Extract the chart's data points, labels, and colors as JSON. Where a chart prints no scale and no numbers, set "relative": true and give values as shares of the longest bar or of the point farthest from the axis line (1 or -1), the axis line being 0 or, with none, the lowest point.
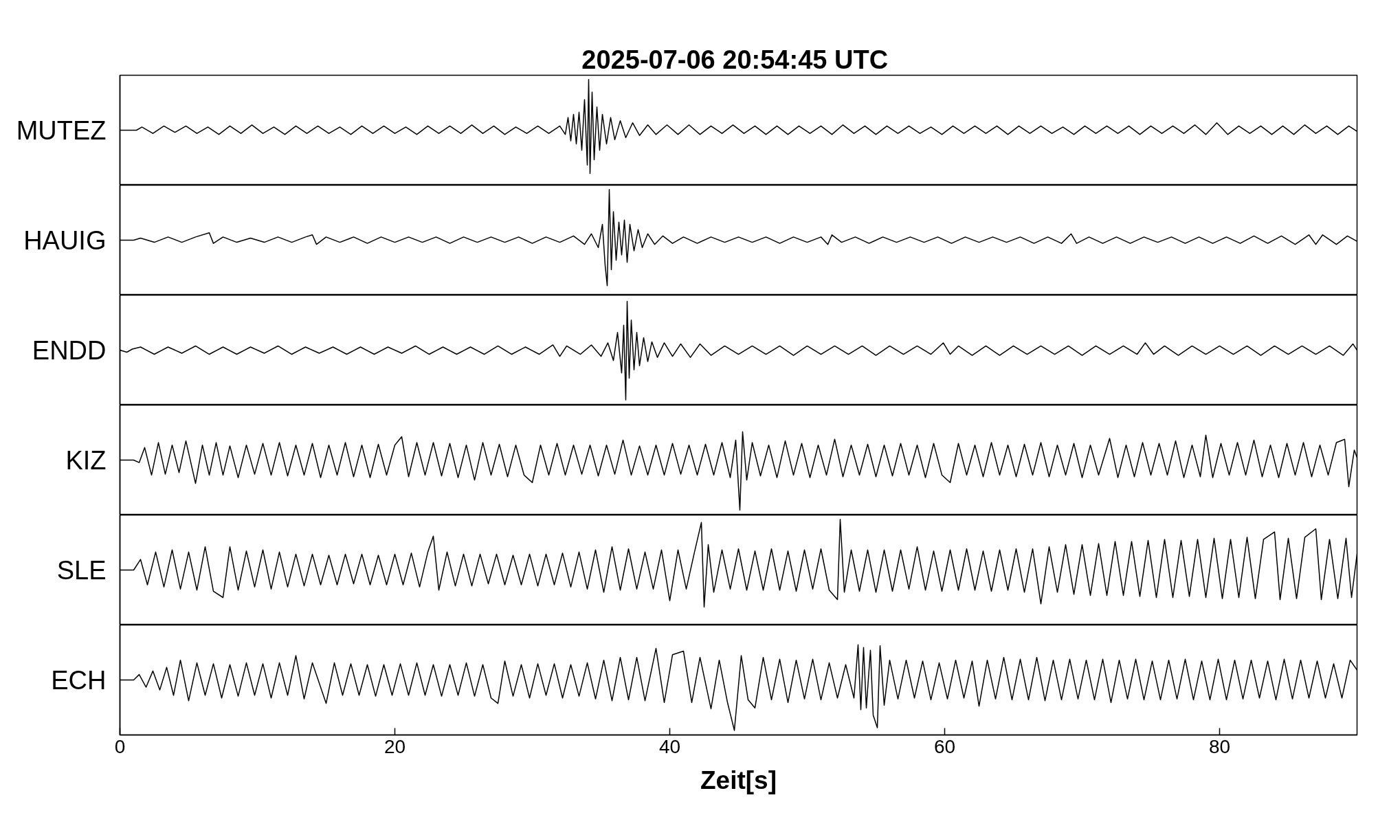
{
  "chart_data": [
    {
      "type": "line",
      "title": "2025-07-06  20:54:45 UTC",
      "ylabel": "MUTEZ",
      "relative": true,
      "color": "#000000",
      "xlim": [
        0,
        90
      ],
      "xticks": [
        0,
        20,
        40,
        60,
        80
      ],
      "tick_labels": false,
      "x": [
        0,
        1.2,
        1.6,
        2.4,
        3.2,
        4.0,
        4.8,
        5.6,
        6.4,
        7.2,
        8.0,
        8.8,
        9.6,
        10.4,
        11.2,
        12.0,
        12.8,
        13.6,
        14.4,
        15.2,
        16.0,
        16.8,
        17.6,
        18.4,
        19.2,
        20.0,
        20.8,
        21.6,
        22.4,
        23.2,
        24.0,
        24.8,
        25.6,
        26.4,
        27.2,
        28.0,
        28.8,
        29.6,
        30.4,
        31.2,
        32.0,
        32.4,
        32.6,
        32.8,
        33.0,
        33.2,
        33.4,
        33.6,
        33.8,
        34.0,
        34.1,
        34.2,
        34.35,
        34.5,
        34.7,
        34.9,
        35.1,
        35.4,
        35.7,
        36.0,
        36.4,
        36.8,
        37.3,
        37.8,
        38.4,
        39.0,
        39.8,
        40.6,
        41.4,
        42.2,
        43.0,
        43.8,
        44.6,
        45.4,
        46.2,
        47.0,
        47.8,
        48.6,
        49.4,
        50.2,
        51.0,
        51.8,
        52.6,
        53.4,
        54.2,
        55.0,
        55.8,
        56.6,
        57.4,
        58.2,
        59.0,
        59.8,
        60.6,
        61.4,
        62.2,
        63.0,
        63.8,
        64.6,
        65.4,
        66.2,
        67.0,
        67.8,
        68.6,
        69.4,
        70.2,
        71.0,
        71.8,
        72.6,
        73.4,
        74.2,
        75.0,
        75.8,
        76.6,
        77.4,
        78.2,
        79.0,
        79.8,
        80.6,
        81.4,
        82.2,
        83.0,
        83.8,
        84.6,
        85.4,
        86.2,
        87.0,
        87.8,
        88.6,
        89.4,
        90.0
      ],
      "values": [
        0.52,
        0.52,
        0.55,
        0.49,
        0.56,
        0.5,
        0.56,
        0.49,
        0.55,
        0.48,
        0.56,
        0.49,
        0.57,
        0.49,
        0.55,
        0.48,
        0.56,
        0.49,
        0.56,
        0.49,
        0.55,
        0.48,
        0.56,
        0.49,
        0.56,
        0.49,
        0.55,
        0.48,
        0.56,
        0.49,
        0.56,
        0.49,
        0.57,
        0.49,
        0.56,
        0.48,
        0.55,
        0.49,
        0.56,
        0.49,
        0.56,
        0.48,
        0.64,
        0.42,
        0.67,
        0.39,
        0.69,
        0.33,
        0.81,
        0.19,
        1.0,
        0.11,
        0.88,
        0.24,
        0.74,
        0.33,
        0.67,
        0.39,
        0.64,
        0.43,
        0.61,
        0.45,
        0.59,
        0.47,
        0.57,
        0.48,
        0.57,
        0.48,
        0.57,
        0.48,
        0.56,
        0.49,
        0.57,
        0.49,
        0.56,
        0.48,
        0.56,
        0.48,
        0.56,
        0.49,
        0.56,
        0.48,
        0.57,
        0.49,
        0.56,
        0.48,
        0.56,
        0.49,
        0.56,
        0.49,
        0.55,
        0.48,
        0.56,
        0.49,
        0.56,
        0.49,
        0.56,
        0.48,
        0.56,
        0.49,
        0.56,
        0.49,
        0.55,
        0.48,
        0.56,
        0.49,
        0.56,
        0.49,
        0.56,
        0.48,
        0.56,
        0.49,
        0.56,
        0.49,
        0.57,
        0.48,
        0.59,
        0.48,
        0.56,
        0.49,
        0.56,
        0.48,
        0.56,
        0.48,
        0.57,
        0.49,
        0.56,
        0.48,
        0.56,
        0.51
      ]
    },
    {
      "type": "line",
      "ylabel": "HAUIG",
      "relative": true,
      "color": "#000000",
      "xlim": [
        0,
        90
      ],
      "xticks": [
        0,
        20,
        40,
        60,
        80
      ],
      "tick_labels": false,
      "x": [
        0,
        1.0,
        1.5,
        2.5,
        3.5,
        4.5,
        5.5,
        6.5,
        6.8,
        7.5,
        8.5,
        9.5,
        10.5,
        11.5,
        12.5,
        13.5,
        14.0,
        14.3,
        15.0,
        16.0,
        17.0,
        18.0,
        19.0,
        20.0,
        21.0,
        22.0,
        23.0,
        24.0,
        25.0,
        26.0,
        27.0,
        28.0,
        29.0,
        30.0,
        31.0,
        32.0,
        33.0,
        33.8,
        34.3,
        34.8,
        35.1,
        35.3,
        35.45,
        35.6,
        35.75,
        35.9,
        36.1,
        36.3,
        36.5,
        36.7,
        36.9,
        37.1,
        37.4,
        37.7,
        38.0,
        38.4,
        38.9,
        39.5,
        40.2,
        41.0,
        42.0,
        43.0,
        44.0,
        45.0,
        46.0,
        47.0,
        48.0,
        49.0,
        50.0,
        51.0,
        51.5,
        51.8,
        52.5,
        53.5,
        54.5,
        55.5,
        56.5,
        57.5,
        58.5,
        59.5,
        60.5,
        61.5,
        62.5,
        63.5,
        64.5,
        65.5,
        66.5,
        67.5,
        68.5,
        69.2,
        69.6,
        70.5,
        71.5,
        72.5,
        73.5,
        74.5,
        75.5,
        76.5,
        77.5,
        78.5,
        79.5,
        80.5,
        81.5,
        82.5,
        83.5,
        84.5,
        85.5,
        86.5,
        87.0,
        87.5,
        88.5,
        89.3,
        90.0
      ],
      "values": [
        0.52,
        0.52,
        0.54,
        0.5,
        0.55,
        0.5,
        0.55,
        0.59,
        0.49,
        0.55,
        0.5,
        0.54,
        0.5,
        0.55,
        0.5,
        0.55,
        0.57,
        0.48,
        0.55,
        0.5,
        0.55,
        0.49,
        0.55,
        0.5,
        0.55,
        0.5,
        0.55,
        0.49,
        0.55,
        0.5,
        0.55,
        0.5,
        0.55,
        0.49,
        0.55,
        0.5,
        0.56,
        0.48,
        0.58,
        0.45,
        0.67,
        0.28,
        0.09,
        1.0,
        0.24,
        0.79,
        0.33,
        0.69,
        0.38,
        0.71,
        0.31,
        0.67,
        0.42,
        0.62,
        0.45,
        0.58,
        0.48,
        0.56,
        0.49,
        0.55,
        0.49,
        0.55,
        0.5,
        0.55,
        0.5,
        0.55,
        0.49,
        0.55,
        0.5,
        0.55,
        0.48,
        0.57,
        0.5,
        0.55,
        0.49,
        0.55,
        0.5,
        0.55,
        0.5,
        0.55,
        0.49,
        0.55,
        0.5,
        0.55,
        0.5,
        0.55,
        0.49,
        0.55,
        0.49,
        0.58,
        0.49,
        0.55,
        0.49,
        0.55,
        0.49,
        0.55,
        0.5,
        0.55,
        0.49,
        0.55,
        0.49,
        0.55,
        0.49,
        0.56,
        0.49,
        0.56,
        0.48,
        0.57,
        0.48,
        0.57,
        0.48,
        0.56,
        0.51
      ]
    },
    {
      "type": "line",
      "ylabel": "ENDD",
      "relative": true,
      "color": "#000000",
      "xlim": [
        0,
        90
      ],
      "xticks": [
        0,
        20,
        40,
        60,
        80
      ],
      "tick_labels": false,
      "x": [
        0,
        0.5,
        0.9,
        1.5,
        2.5,
        3.5,
        4.5,
        5.5,
        6.5,
        7.5,
        8.5,
        9.5,
        10.5,
        11.5,
        12.5,
        13.5,
        14.5,
        15.5,
        16.5,
        17.5,
        18.5,
        19.5,
        20.5,
        21.5,
        22.5,
        23.5,
        24.5,
        25.5,
        26.5,
        27.5,
        28.5,
        29.5,
        30.5,
        31.5,
        32.0,
        32.5,
        33.5,
        34.3,
        35.0,
        35.5,
        35.9,
        36.2,
        36.5,
        36.65,
        36.8,
        36.9,
        37.05,
        37.2,
        37.4,
        37.6,
        37.8,
        38.1,
        38.4,
        38.7,
        39.1,
        39.6,
        40.2,
        40.8,
        41.5,
        42.2,
        43.0,
        44.0,
        45.0,
        46.0,
        47.0,
        48.0,
        49.0,
        50.0,
        51.0,
        52.0,
        53.0,
        54.0,
        55.0,
        56.0,
        57.0,
        58.0,
        59.0,
        59.9,
        60.4,
        61.0,
        62.0,
        63.0,
        64.0,
        65.0,
        66.0,
        67.0,
        68.0,
        69.0,
        70.0,
        71.0,
        72.0,
        73.0,
        74.0,
        74.6,
        75.2,
        76.0,
        77.0,
        78.0,
        79.0,
        80.0,
        81.0,
        82.0,
        83.0,
        84.0,
        85.0,
        86.0,
        87.0,
        88.0,
        89.0,
        89.7,
        90.0
      ],
      "values": [
        0.53,
        0.51,
        0.54,
        0.56,
        0.49,
        0.56,
        0.5,
        0.57,
        0.49,
        0.56,
        0.49,
        0.56,
        0.5,
        0.57,
        0.49,
        0.56,
        0.5,
        0.56,
        0.49,
        0.56,
        0.49,
        0.56,
        0.5,
        0.57,
        0.49,
        0.56,
        0.49,
        0.56,
        0.49,
        0.57,
        0.49,
        0.56,
        0.49,
        0.58,
        0.47,
        0.57,
        0.49,
        0.58,
        0.47,
        0.6,
        0.43,
        0.7,
        0.31,
        0.77,
        0.05,
        1.0,
        0.26,
        0.82,
        0.34,
        0.7,
        0.38,
        0.65,
        0.42,
        0.61,
        0.46,
        0.6,
        0.47,
        0.59,
        0.46,
        0.59,
        0.48,
        0.57,
        0.49,
        0.57,
        0.49,
        0.57,
        0.48,
        0.57,
        0.49,
        0.57,
        0.49,
        0.57,
        0.48,
        0.57,
        0.49,
        0.57,
        0.49,
        0.6,
        0.49,
        0.57,
        0.48,
        0.57,
        0.48,
        0.57,
        0.49,
        0.57,
        0.49,
        0.57,
        0.48,
        0.57,
        0.49,
        0.57,
        0.49,
        0.6,
        0.49,
        0.57,
        0.48,
        0.57,
        0.49,
        0.57,
        0.49,
        0.57,
        0.48,
        0.57,
        0.49,
        0.57,
        0.49,
        0.57,
        0.48,
        0.59,
        0.53
      ]
    },
    {
      "type": "line",
      "ylabel": "KIZ",
      "relative": true,
      "color": "#000000",
      "xlim": [
        0,
        90
      ],
      "xticks": [
        0,
        20,
        40,
        60,
        80
      ],
      "tick_labels": false,
      "x": [
        0,
        1.0,
        1.4,
        1.8,
        2.3,
        2.8,
        3.3,
        3.8,
        4.3,
        4.8,
        5.5,
        6.0,
        6.5,
        7.0,
        7.5,
        8.0,
        8.6,
        9.2,
        9.8,
        10.4,
        11.0,
        11.6,
        12.2,
        12.8,
        13.4,
        14.0,
        14.6,
        15.2,
        15.8,
        16.4,
        17.0,
        17.6,
        18.2,
        18.8,
        19.4,
        20.0,
        20.5,
        21.0,
        21.6,
        22.2,
        22.8,
        23.4,
        24.0,
        24.6,
        25.2,
        25.8,
        26.4,
        27.0,
        27.6,
        28.2,
        28.8,
        29.4,
        30.0,
        30.6,
        31.2,
        31.8,
        32.4,
        33.0,
        33.6,
        34.2,
        34.8,
        35.4,
        36.0,
        36.6,
        37.2,
        37.8,
        38.4,
        39.0,
        39.6,
        40.2,
        40.8,
        41.4,
        42.0,
        42.6,
        43.2,
        43.8,
        44.4,
        44.8,
        45.1,
        45.3,
        45.6,
        46.0,
        46.6,
        47.2,
        47.8,
        48.4,
        49.0,
        49.6,
        50.2,
        50.8,
        51.4,
        52.0,
        52.6,
        53.2,
        53.8,
        54.4,
        55.0,
        55.6,
        56.2,
        56.8,
        57.4,
        58.0,
        58.6,
        59.2,
        59.8,
        60.4,
        61.0,
        61.6,
        62.2,
        62.8,
        63.4,
        64.0,
        64.6,
        65.2,
        65.8,
        66.4,
        67.0,
        67.6,
        68.2,
        68.8,
        69.4,
        70.0,
        70.6,
        71.2,
        72.0,
        72.6,
        73.2,
        73.8,
        74.4,
        75.0,
        75.6,
        76.2,
        76.8,
        77.4,
        78.0,
        78.6,
        79.0,
        79.5,
        80.1,
        80.7,
        81.3,
        81.9,
        82.5,
        83.1,
        83.7,
        84.3,
        84.9,
        85.5,
        86.1,
        86.7,
        87.3,
        87.9,
        88.5,
        89.1,
        89.4,
        89.8,
        90.0
      ],
      "values": [
        0.66,
        0.66,
        0.63,
        0.81,
        0.48,
        0.87,
        0.49,
        0.84,
        0.51,
        0.89,
        0.38,
        0.84,
        0.48,
        0.87,
        0.48,
        0.83,
        0.45,
        0.84,
        0.49,
        0.86,
        0.48,
        0.87,
        0.47,
        0.84,
        0.48,
        0.86,
        0.45,
        0.84,
        0.48,
        0.87,
        0.46,
        0.84,
        0.45,
        0.85,
        0.48,
        0.84,
        0.94,
        0.46,
        0.87,
        0.48,
        0.87,
        0.47,
        0.86,
        0.45,
        0.84,
        0.42,
        0.87,
        0.48,
        0.85,
        0.46,
        0.84,
        0.48,
        0.39,
        0.84,
        0.48,
        0.86,
        0.48,
        0.84,
        0.49,
        0.84,
        0.47,
        0.84,
        0.49,
        0.9,
        0.48,
        0.83,
        0.48,
        0.84,
        0.48,
        0.86,
        0.49,
        0.84,
        0.48,
        0.85,
        0.48,
        0.87,
        0.45,
        0.9,
        0.06,
        1.0,
        0.42,
        0.87,
        0.47,
        0.84,
        0.45,
        0.89,
        0.48,
        0.86,
        0.45,
        0.84,
        0.48,
        0.91,
        0.46,
        0.84,
        0.48,
        0.85,
        0.46,
        0.84,
        0.47,
        0.86,
        0.48,
        0.84,
        0.45,
        0.86,
        0.48,
        0.39,
        0.86,
        0.48,
        0.84,
        0.46,
        0.87,
        0.48,
        0.84,
        0.46,
        0.85,
        0.48,
        0.87,
        0.46,
        0.84,
        0.48,
        0.86,
        0.45,
        0.84,
        0.48,
        0.92,
        0.45,
        0.84,
        0.46,
        0.87,
        0.48,
        0.86,
        0.48,
        0.89,
        0.45,
        0.84,
        0.46,
        0.96,
        0.45,
        0.86,
        0.48,
        0.87,
        0.48,
        0.9,
        0.46,
        0.84,
        0.45,
        0.86,
        0.48,
        0.87,
        0.46,
        0.84,
        0.48,
        0.87,
        0.91,
        0.34,
        0.78,
        0.69
      ]
    },
    {
      "type": "line",
      "ylabel": "SLE",
      "relative": true,
      "color": "#000000",
      "xlim": [
        0,
        90
      ],
      "xticks": [
        0,
        20,
        40,
        60,
        80
      ],
      "tick_labels": false,
      "x": [
        0,
        1.0,
        1.5,
        2.0,
        2.6,
        3.2,
        3.8,
        4.4,
        5.0,
        5.6,
        6.2,
        6.8,
        7.5,
        8.0,
        8.6,
        9.2,
        9.8,
        10.4,
        11.0,
        11.6,
        12.2,
        12.8,
        13.4,
        14.0,
        14.6,
        15.2,
        15.8,
        16.4,
        17.0,
        17.6,
        18.2,
        18.8,
        19.4,
        20.0,
        20.6,
        21.2,
        21.8,
        22.4,
        22.8,
        23.2,
        23.8,
        24.4,
        25.0,
        25.6,
        26.2,
        26.8,
        27.4,
        28.0,
        28.6,
        29.2,
        29.8,
        30.4,
        31.0,
        31.6,
        32.2,
        32.8,
        33.4,
        34.0,
        34.6,
        35.2,
        35.8,
        36.4,
        37.0,
        37.6,
        38.2,
        38.8,
        39.4,
        40.0,
        40.6,
        41.2,
        41.8,
        42.3,
        42.5,
        42.8,
        43.2,
        43.8,
        44.4,
        45.0,
        45.6,
        46.2,
        46.8,
        47.4,
        48.0,
        48.6,
        49.2,
        49.8,
        50.4,
        51.0,
        51.6,
        52.2,
        52.4,
        52.7,
        53.2,
        53.8,
        54.4,
        55.0,
        55.6,
        56.2,
        56.8,
        57.4,
        58.0,
        58.6,
        59.2,
        59.8,
        60.4,
        61.0,
        61.6,
        62.2,
        62.8,
        63.4,
        64.0,
        64.6,
        65.2,
        65.8,
        66.4,
        67.0,
        67.6,
        68.2,
        68.8,
        69.4,
        70.0,
        70.6,
        71.2,
        71.8,
        72.4,
        73.0,
        73.6,
        74.2,
        74.8,
        75.4,
        76.0,
        76.6,
        77.2,
        77.8,
        78.4,
        79.0,
        79.6,
        80.2,
        80.8,
        81.4,
        82.0,
        82.6,
        83.2,
        84.0,
        84.4,
        85.0,
        85.6,
        86.2,
        87.0,
        87.4,
        88.0,
        88.6,
        89.2,
        89.6,
        90.0
      ],
      "values": [
        0.52,
        0.52,
        0.62,
        0.38,
        0.69,
        0.36,
        0.71,
        0.34,
        0.69,
        0.33,
        0.74,
        0.32,
        0.26,
        0.74,
        0.33,
        0.7,
        0.36,
        0.71,
        0.34,
        0.69,
        0.36,
        0.67,
        0.37,
        0.67,
        0.38,
        0.66,
        0.38,
        0.67,
        0.39,
        0.67,
        0.38,
        0.66,
        0.38,
        0.67,
        0.38,
        0.68,
        0.36,
        0.69,
        0.84,
        0.33,
        0.69,
        0.37,
        0.67,
        0.37,
        0.67,
        0.39,
        0.67,
        0.38,
        0.66,
        0.38,
        0.67,
        0.37,
        0.67,
        0.38,
        0.68,
        0.36,
        0.69,
        0.34,
        0.71,
        0.31,
        0.74,
        0.33,
        0.72,
        0.34,
        0.69,
        0.34,
        0.71,
        0.23,
        0.71,
        0.34,
        0.69,
        0.97,
        0.17,
        0.76,
        0.31,
        0.71,
        0.34,
        0.72,
        0.33,
        0.7,
        0.33,
        0.72,
        0.33,
        0.7,
        0.32,
        0.71,
        0.34,
        0.72,
        0.33,
        0.24,
        1.0,
        0.31,
        0.71,
        0.32,
        0.71,
        0.31,
        0.71,
        0.32,
        0.71,
        0.34,
        0.74,
        0.33,
        0.7,
        0.32,
        0.71,
        0.33,
        0.72,
        0.33,
        0.7,
        0.32,
        0.71,
        0.33,
        0.72,
        0.31,
        0.72,
        0.2,
        0.74,
        0.31,
        0.76,
        0.29,
        0.76,
        0.28,
        0.77,
        0.28,
        0.79,
        0.28,
        0.79,
        0.27,
        0.8,
        0.26,
        0.81,
        0.26,
        0.8,
        0.27,
        0.81,
        0.26,
        0.82,
        0.25,
        0.81,
        0.26,
        0.83,
        0.25,
        0.81,
        0.88,
        0.24,
        0.82,
        0.25,
        0.83,
        0.91,
        0.24,
        0.81,
        0.25,
        0.82,
        0.26,
        0.67
      ]
    },
    {
      "type": "line",
      "ylabel": "ECH",
      "xlabel": "Zeit[s]",
      "relative": true,
      "color": "#000000",
      "xlim": [
        0,
        90
      ],
      "xticks": [
        0,
        20,
        40,
        60,
        80
      ],
      "tick_labels": "x",
      "x": [
        0,
        1.0,
        1.4,
        1.9,
        2.4,
        2.9,
        3.4,
        3.9,
        4.4,
        5.0,
        5.6,
        6.2,
        6.8,
        7.4,
        8.0,
        8.6,
        9.2,
        9.8,
        10.4,
        11.0,
        11.6,
        12.2,
        12.8,
        13.4,
        14.0,
        15.0,
        15.6,
        16.2,
        16.8,
        17.4,
        18.0,
        18.6,
        19.2,
        19.8,
        20.4,
        21.0,
        21.6,
        22.2,
        22.8,
        23.4,
        24.0,
        24.6,
        25.2,
        25.8,
        26.4,
        27.0,
        27.5,
        28.0,
        28.6,
        29.2,
        29.8,
        30.4,
        31.0,
        31.6,
        32.2,
        32.8,
        33.4,
        34.0,
        34.6,
        35.2,
        35.8,
        36.4,
        37.0,
        37.6,
        38.2,
        39.0,
        39.6,
        40.2,
        41.0,
        41.6,
        42.2,
        43.0,
        43.6,
        44.2,
        44.7,
        45.2,
        45.7,
        46.2,
        46.8,
        47.4,
        48.0,
        48.6,
        49.2,
        49.8,
        50.4,
        51.0,
        51.6,
        52.2,
        52.8,
        53.4,
        53.7,
        53.9,
        54.1,
        54.3,
        54.6,
        54.8,
        55.1,
        55.3,
        55.6,
        56.0,
        56.6,
        57.2,
        57.8,
        58.4,
        59.0,
        59.6,
        60.2,
        60.8,
        61.4,
        62.0,
        62.5,
        63.1,
        63.7,
        64.3,
        64.9,
        65.5,
        66.1,
        66.7,
        67.3,
        67.9,
        68.5,
        69.1,
        69.7,
        70.3,
        70.9,
        71.5,
        72.1,
        72.7,
        73.3,
        73.9,
        74.5,
        75.1,
        75.7,
        76.3,
        76.9,
        77.5,
        78.1,
        78.7,
        79.3,
        79.9,
        80.5,
        81.1,
        81.7,
        82.3,
        82.9,
        83.5,
        84.1,
        84.7,
        85.3,
        85.9,
        86.5,
        87.1,
        87.7,
        88.3,
        88.9,
        89.5,
        90.0
      ],
      "values": [
        0.61,
        0.61,
        0.67,
        0.53,
        0.71,
        0.5,
        0.75,
        0.44,
        0.83,
        0.38,
        0.8,
        0.44,
        0.79,
        0.41,
        0.78,
        0.43,
        0.8,
        0.44,
        0.79,
        0.41,
        0.8,
        0.44,
        0.88,
        0.4,
        0.8,
        0.35,
        0.8,
        0.44,
        0.79,
        0.44,
        0.78,
        0.43,
        0.78,
        0.44,
        0.79,
        0.44,
        0.8,
        0.44,
        0.78,
        0.43,
        0.78,
        0.44,
        0.8,
        0.43,
        0.78,
        0.41,
        0.35,
        0.82,
        0.43,
        0.78,
        0.41,
        0.79,
        0.44,
        0.79,
        0.41,
        0.78,
        0.43,
        0.8,
        0.4,
        0.83,
        0.38,
        0.86,
        0.39,
        0.86,
        0.38,
        0.96,
        0.36,
        0.89,
        0.93,
        0.36,
        0.86,
        0.29,
        0.83,
        0.36,
        0.05,
        0.88,
        0.39,
        0.3,
        0.86,
        0.39,
        0.84,
        0.36,
        0.83,
        0.4,
        0.84,
        0.39,
        0.8,
        0.41,
        0.78,
        0.41,
        1.0,
        0.28,
        0.97,
        0.3,
        0.94,
        0.22,
        0.08,
        0.99,
        0.33,
        0.83,
        0.4,
        0.83,
        0.41,
        0.82,
        0.39,
        0.8,
        0.4,
        0.83,
        0.41,
        0.82,
        0.32,
        0.83,
        0.4,
        0.86,
        0.39,
        0.84,
        0.39,
        0.86,
        0.38,
        0.83,
        0.39,
        0.84,
        0.4,
        0.83,
        0.39,
        0.84,
        0.36,
        0.83,
        0.4,
        0.84,
        0.39,
        0.82,
        0.39,
        0.83,
        0.4,
        0.84,
        0.39,
        0.82,
        0.39,
        0.84,
        0.39,
        0.83,
        0.4,
        0.83,
        0.41,
        0.82,
        0.39,
        0.84,
        0.4,
        0.83,
        0.41,
        0.82,
        0.41,
        0.79,
        0.41,
        0.83,
        0.72
      ]
    }
  ]
}
